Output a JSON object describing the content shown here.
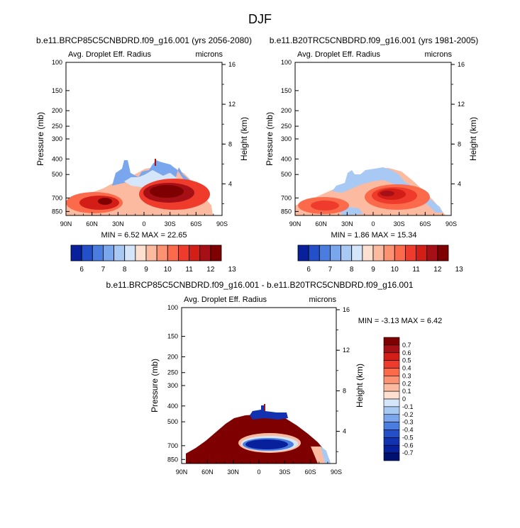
{
  "page_title": "DJF",
  "chart_data": [
    {
      "type": "heatmap",
      "case_title": "b.e11.BRCP85C5CNBDRD.f09_g16.001 (yrs 2056-2080)",
      "variable": "Avg. Droplet Eff. Radius",
      "units": "microns",
      "xlabel": "",
      "ylabel": "Pressure (mb)",
      "ylabel_right": "Height (km)",
      "x_ticks": [
        "90N",
        "60N",
        "30N",
        "0",
        "30S",
        "60S",
        "90S"
      ],
      "y_ticks": [
        "100",
        "150",
        "200",
        "250",
        "300",
        "400",
        "500",
        "700",
        "850"
      ],
      "y_ticks_right": [
        "16",
        "12",
        "8",
        "4"
      ],
      "stats": "MIN =  6.52  MAX = 22.65",
      "colorbar_labels": [
        "6",
        "7",
        "8",
        "9",
        "10",
        "11",
        "12",
        "13"
      ],
      "colorbar_colors": [
        "#08209c",
        "#2350c8",
        "#4b7ce0",
        "#7aa6ee",
        "#a9c9f5",
        "#d5e6fa",
        "#fde0d0",
        "#fcbba1",
        "#fc9272",
        "#fb6a4a",
        "#ef3b2c",
        "#d21e16",
        "#a50f15",
        "#7f0000"
      ]
    },
    {
      "type": "heatmap",
      "case_title": "b.e11.B20TRC5CNBDRD.f09_g16.001 (yrs 1981-2005)",
      "variable": "Avg. Droplet Eff. Radius",
      "units": "microns",
      "ylabel": "Pressure (mb)",
      "ylabel_right": "Height (km)",
      "x_ticks": [
        "90N",
        "60N",
        "30N",
        "0",
        "30S",
        "60S",
        "90S"
      ],
      "y_ticks": [
        "100",
        "150",
        "200",
        "250",
        "300",
        "400",
        "500",
        "700",
        "850"
      ],
      "y_ticks_right": [
        "16",
        "12",
        "8",
        "4"
      ],
      "stats": "MIN =  1.86  MAX = 15.34",
      "colorbar_labels": [
        "6",
        "7",
        "8",
        "9",
        "10",
        "11",
        "12",
        "13"
      ],
      "colorbar_colors": [
        "#08209c",
        "#2350c8",
        "#4b7ce0",
        "#7aa6ee",
        "#a9c9f5",
        "#d5e6fa",
        "#fde0d0",
        "#fcbba1",
        "#fc9272",
        "#fb6a4a",
        "#ef3b2c",
        "#d21e16",
        "#a50f15",
        "#7f0000"
      ]
    },
    {
      "type": "heatmap",
      "case_title": "b.e11.BRCP85C5CNBDRD.f09_g16.001 - b.e11.B20TRC5CNBDRD.f09_g16.001",
      "variable": "Avg. Droplet Eff. Radius",
      "units": "microns",
      "ylabel": "Pressure (mb)",
      "ylabel_right": "Height (km)",
      "x_ticks": [
        "90N",
        "60N",
        "30N",
        "0",
        "30S",
        "60S",
        "90S"
      ],
      "y_ticks": [
        "100",
        "150",
        "200",
        "250",
        "300",
        "400",
        "500",
        "700",
        "850"
      ],
      "y_ticks_right": [
        "16",
        "12",
        "8",
        "4"
      ],
      "stats": "MIN = -3.13  MAX =  6.42",
      "colorbar_labels": [
        "0.7",
        "0.6",
        "0.5",
        "0.4",
        "0.3",
        "0.2",
        "0.1",
        "0",
        "-0.1",
        "-0.2",
        "-0.3",
        "-0.4",
        "-0.5",
        "-0.6",
        "-0.7"
      ],
      "colorbar_colors": [
        "#7f0000",
        "#a50f15",
        "#d21e16",
        "#ef3b2c",
        "#fb6a4a",
        "#fc9272",
        "#fcbba1",
        "#fde0d0",
        "#d5e6fa",
        "#a9c9f5",
        "#7aa6ee",
        "#4b7ce0",
        "#2350c8",
        "#1232b0",
        "#08209c",
        "#001070"
      ]
    }
  ]
}
